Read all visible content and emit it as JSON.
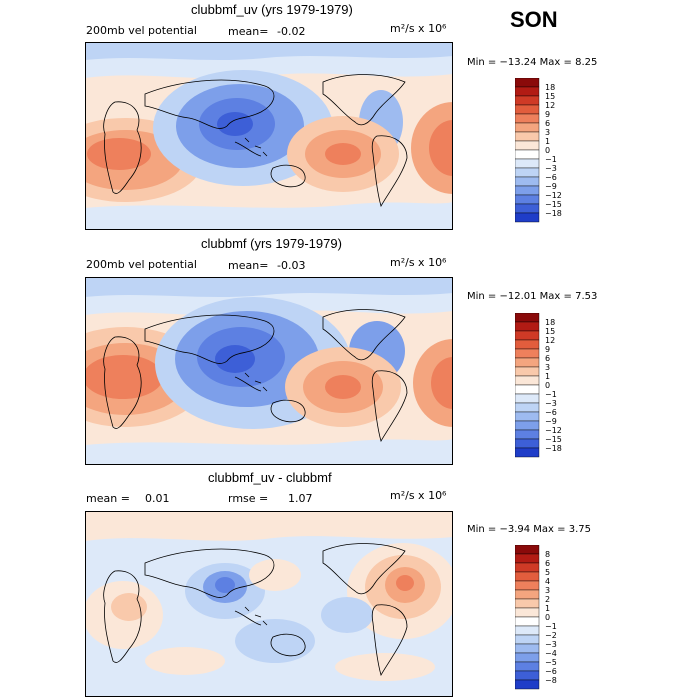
{
  "season": "SON",
  "colors": {
    "warm": [
      "#fbe7d8",
      "#f9c9ab",
      "#f4a57f",
      "#ee805c",
      "#e25d3d",
      "#cf3a26",
      "#b21b14",
      "#8a0a0a"
    ],
    "cool": [
      "#dde9f9",
      "#bed4f5",
      "#9ebbf0",
      "#7d9fea",
      "#5d80e2",
      "#3d5fd7",
      "#1f3dc8",
      "#0a1e9c"
    ],
    "neutral": "#ffffff",
    "land_line": "#000000"
  },
  "panels": [
    {
      "title": "clubbmf_uv (yrs 1979-1979)",
      "left_label": "200mb vel potential",
      "mean_label": "mean=",
      "mean_value": "-0.02",
      "units": "m²/s x 10⁶",
      "min_max": "Min = −13.24 Max =    8.25",
      "colorbar_labels": [
        "18",
        "15",
        "12",
        "9",
        "6",
        "3",
        "1",
        "0",
        "−1",
        "−3",
        "−6",
        "−9",
        "−12",
        "−15",
        "−18"
      ]
    },
    {
      "title": "clubbmf (yrs 1979-1979)",
      "left_label": "200mb vel potential",
      "mean_label": "mean=",
      "mean_value": "-0.03",
      "units": "m²/s x 10⁶",
      "min_max": "Min = −12.01 Max =    7.53",
      "colorbar_labels": [
        "18",
        "15",
        "12",
        "9",
        "6",
        "3",
        "1",
        "0",
        "−1",
        "−3",
        "−6",
        "−9",
        "−12",
        "−15",
        "−18"
      ]
    },
    {
      "title": "clubbmf_uv - clubbmf",
      "left_label": "mean =",
      "left_value": "0.01",
      "mid_label": "rmse =",
      "mid_value": "1.07",
      "units": "m²/s x 10⁶",
      "min_max": "Min = −3.94 Max =    3.75",
      "colorbar_labels": [
        "8",
        "6",
        "5",
        "4",
        "3",
        "2",
        "1",
        "0",
        "−1",
        "−2",
        "−3",
        "−4",
        "−5",
        "−6",
        "−8"
      ]
    }
  ]
}
